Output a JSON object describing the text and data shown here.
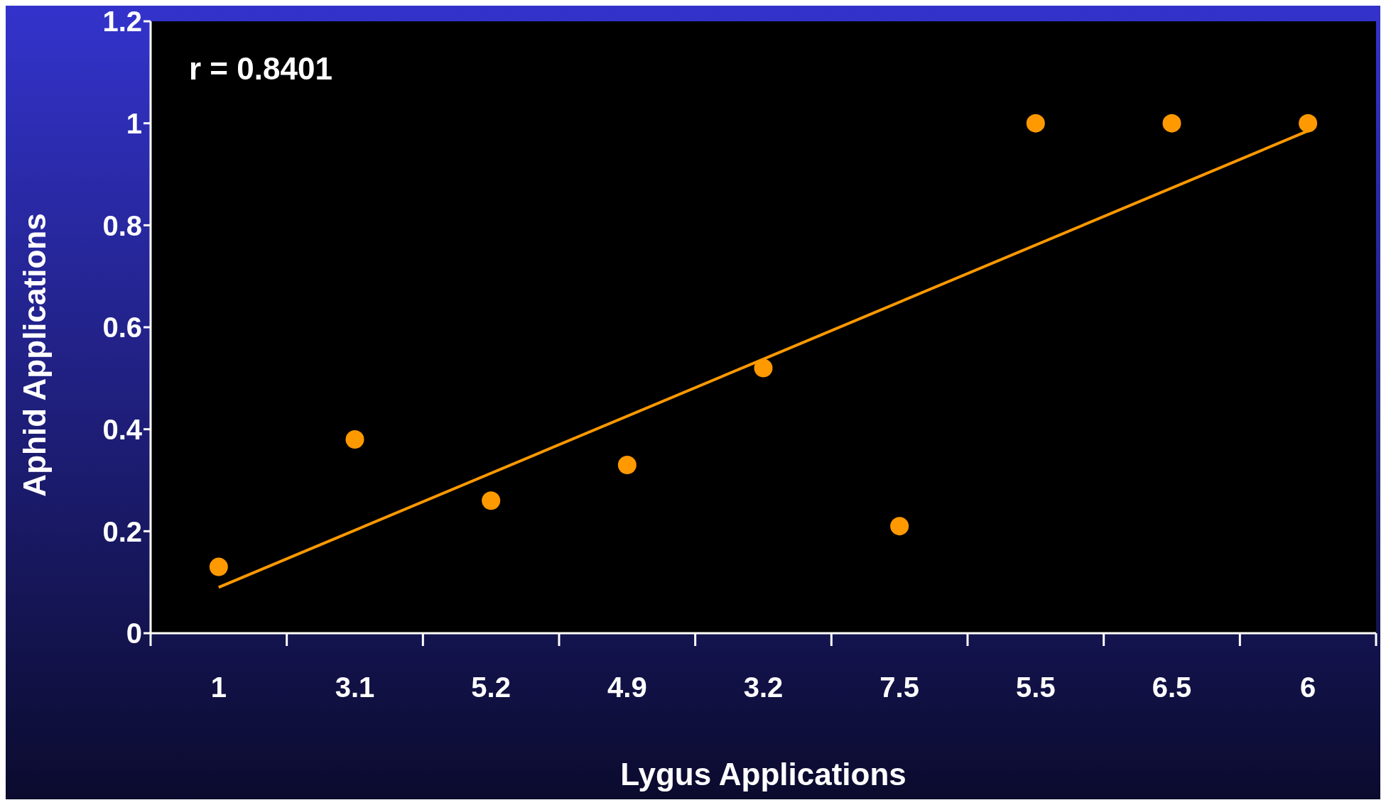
{
  "chart_data": {
    "type": "scatter",
    "xlabel": "Lygus Applications",
    "ylabel": "Aphid Applications",
    "categories": [
      "1",
      "3.1",
      "5.2",
      "4.9",
      "3.2",
      "7.5",
      "5.5",
      "6.5",
      "6"
    ],
    "series": [
      {
        "color": "#ff9900",
        "marker": "circle",
        "values": [
          0.13,
          0.38,
          0.26,
          0.33,
          0.52,
          0.21,
          1,
          1,
          1
        ]
      },
      {
        "type": "line",
        "color": "#ff9900",
        "marker": "none",
        "x": [
          "1",
          "6"
        ],
        "values": [
          0.09,
          0.985
        ]
      }
    ],
    "ylim": [
      0,
      1.2
    ],
    "yticks": [
      0,
      0.2,
      0.4,
      0.6,
      0.8,
      1,
      1.2
    ],
    "annotations": [
      "r = 0.8401"
    ],
    "grid": false
  }
}
